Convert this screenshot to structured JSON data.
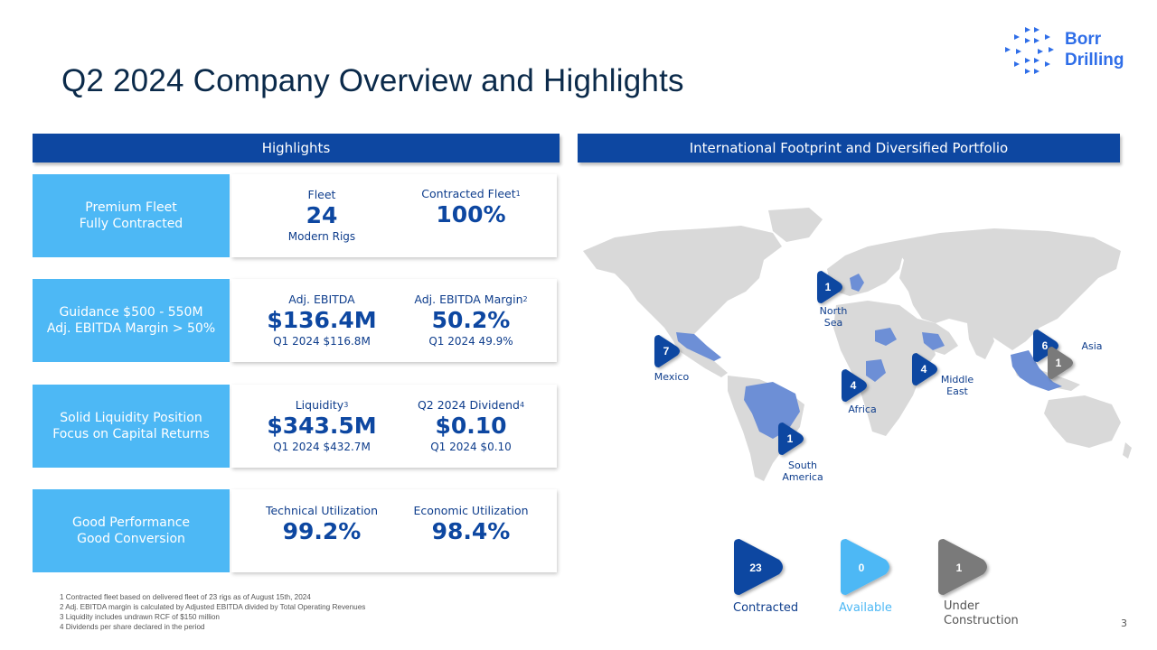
{
  "title": "Q2 2024 Company Overview and Highlights",
  "logo": {
    "line1": "Borr",
    "line2": "Drilling",
    "color": "#2f6ee8"
  },
  "highlights": {
    "header": "Highlights",
    "rows": [
      {
        "label_line1": "Premium Fleet",
        "label_line2": "Fully Contracted",
        "left": {
          "label": "Fleet",
          "value": "24",
          "sub": "Modern Rigs"
        },
        "right": {
          "label": "Contracted Fleet",
          "sup": "1",
          "value": "100%",
          "sub": ""
        }
      },
      {
        "label_line1": "Guidance $500 - 550M",
        "label_line2": "Adj. EBITDA Margin > 50%",
        "left": {
          "label": "Adj. EBITDA",
          "value": "$136.4M",
          "sub": "Q1 2024  $116.8M"
        },
        "right": {
          "label": "Adj. EBITDA Margin",
          "sup": "2",
          "value": "50.2%",
          "sub": "Q1 2024  49.9%"
        }
      },
      {
        "label_line1": "Solid Liquidity Position",
        "label_line2": "Focus on Capital Returns",
        "left": {
          "label": "Liquidity",
          "sup": "3",
          "value": "$343.5M",
          "sub": "Q1 2024 $432.7M"
        },
        "right": {
          "label": "Q2 2024 Dividend",
          "sup": "4",
          "value": "$0.10",
          "sub": "Q1 2024 $0.10"
        }
      },
      {
        "label_line1": "Good Performance",
        "label_line2": "Good Conversion",
        "left": {
          "label": "Technical Utilization",
          "value": "99.2%",
          "sub": ""
        },
        "right": {
          "label": "Economic Utilization",
          "value": "98.4%",
          "sub": ""
        }
      }
    ]
  },
  "map": {
    "header": "International Footprint and Diversified Portfolio",
    "markers": [
      {
        "count": "1",
        "region": "North Sea",
        "line1": "North",
        "line2": "Sea",
        "status": "contracted"
      },
      {
        "count": "7",
        "region": "Mexico",
        "line1": "Mexico",
        "line2": "",
        "status": "contracted"
      },
      {
        "count": "4",
        "region": "Africa",
        "line1": "Africa",
        "line2": "",
        "status": "contracted"
      },
      {
        "count": "4",
        "region": "Middle East",
        "line1": "Middle",
        "line2": "East",
        "status": "contracted"
      },
      {
        "count": "6",
        "region": "Asia",
        "line1": "Asia",
        "line2": "",
        "status": "contracted"
      },
      {
        "count": "1",
        "region": "Asia",
        "line1": "",
        "line2": "",
        "status": "under-construction"
      },
      {
        "count": "1",
        "region": "South America",
        "line1": "South",
        "line2": "America",
        "status": "contracted"
      }
    ]
  },
  "legend": [
    {
      "count": "23",
      "label_line1": "Contracted",
      "label_line2": "",
      "color": "#0d47a1"
    },
    {
      "count": "0",
      "label_line1": "Available",
      "label_line2": "",
      "color": "#4db8f5"
    },
    {
      "count": "1",
      "label_line1": "Under",
      "label_line2": "Construction",
      "color": "#7a7a7a"
    }
  ],
  "footnotes": [
    {
      "num": "1",
      "text": "Contracted fleet based on delivered fleet of 23 rigs as of August 15",
      "suffix": "th",
      "tail": ", 2024"
    },
    {
      "num": "2",
      "text": "Adj. EBITDA margin is calculated  by Adjusted EBITDA divided by Total Operating Revenues",
      "suffix": "",
      "tail": ""
    },
    {
      "num": "3",
      "text": "Liquidity includes undrawn RCF of $150 million",
      "suffix": "",
      "tail": ""
    },
    {
      "num": "4",
      "text": "Dividends per share declared in the period",
      "suffix": "",
      "tail": ""
    }
  ],
  "colors": {
    "navy": "#0d47a1",
    "sky": "#4db8f5",
    "gray": "#7a7a7a",
    "map_land": "#d9d9d9",
    "map_highlight": "#6d8fd6"
  },
  "page_number": "3"
}
